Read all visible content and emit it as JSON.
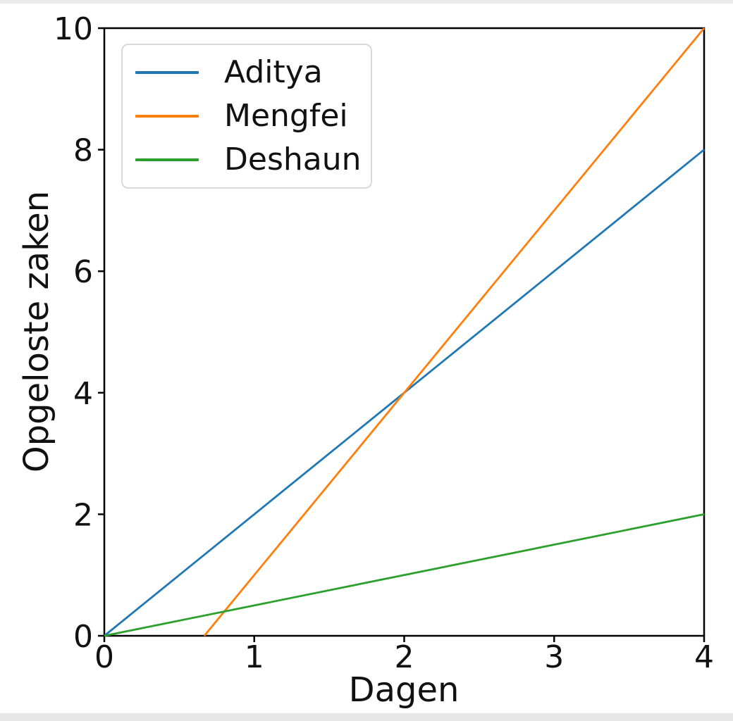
{
  "chart_data": {
    "type": "line",
    "title": "",
    "xlabel": "Dagen",
    "ylabel": "Opgeloste zaken",
    "xlim": [
      0,
      4
    ],
    "ylim": [
      0,
      10
    ],
    "x_ticks": [
      0,
      1,
      2,
      3,
      4
    ],
    "y_ticks": [
      0,
      2,
      4,
      6,
      8,
      10
    ],
    "grid": false,
    "legend_position": "upper left",
    "axis_color": "#000000",
    "series": [
      {
        "name": "Aditya",
        "color": "#1f77b4",
        "points": [
          [
            0,
            0
          ],
          [
            4,
            8
          ]
        ]
      },
      {
        "name": "Mengfei",
        "color": "#ff7f0e",
        "points": [
          [
            0.6667,
            0
          ],
          [
            4,
            10
          ]
        ]
      },
      {
        "name": "Deshaun",
        "color": "#2ca02c",
        "points": [
          [
            0,
            0
          ],
          [
            4,
            2
          ]
        ]
      }
    ]
  }
}
